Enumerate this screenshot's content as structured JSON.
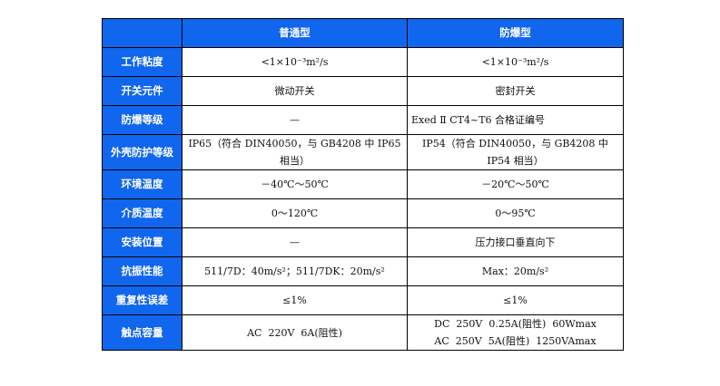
{
  "header": {
    "corner": "",
    "col1": "普通型",
    "col2": "防爆型",
    "color": "#1166ee"
  },
  "rows": [
    {
      "label": "工作粘度",
      "c1": "<1×10⁻³m²/s",
      "c2": "<1×10⁻³m²/s"
    },
    {
      "label": "开关元件",
      "c1": "微动开关",
      "c2": "密封开关"
    },
    {
      "label": "防爆等级",
      "c1": "—",
      "c2": "Exed Ⅱ CT4~T6 合格证编号"
    },
    {
      "label": "外壳防护等级",
      "c1": "IP65（符合 DIN40050，与 GB4208 中 IP65 相当）",
      "c2": "IP54（符合 DIN40050，与 GB4208 中 IP54 相当）"
    },
    {
      "label": "环境温度",
      "c1": "－40℃～50℃",
      "c2": "－20℃～50℃"
    },
    {
      "label": "介质温度",
      "c1": "0～120℃",
      "c2": "0～95℃"
    },
    {
      "label": "安装位置",
      "c1": "—",
      "c2": "压力接口垂直向下"
    },
    {
      "label": "抗振性能",
      "c1": "511/7D：40m/s²；511/7DK：20m/s²",
      "c2": "Max：20m/s²"
    },
    {
      "label": "重复性误差",
      "c1": "≤1%",
      "c2": "≤1%"
    },
    {
      "label": "触点容量",
      "c1": "AC  220V  6A(阻性)",
      "c2a": "DC  250V  0.25A(阻性)  60Wmax",
      "c2b": "AC  250V  5A(阻性)  1250VAmax"
    }
  ]
}
